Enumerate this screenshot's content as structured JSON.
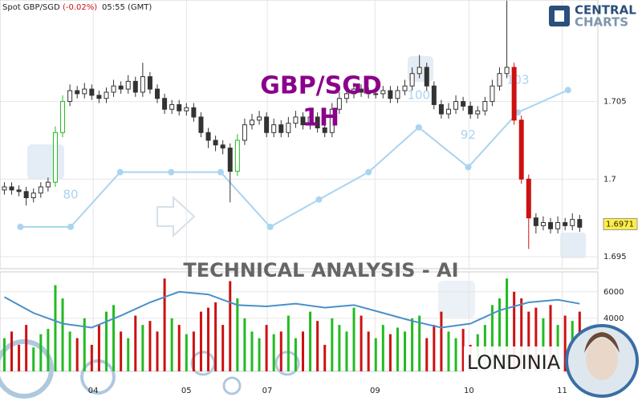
{
  "chart_data": {
    "type": "candlestick",
    "header": {
      "symbol": "Spot GBP/SGD",
      "change": "(-0.02%)",
      "time": "05:55 (GMT)"
    },
    "watermark": {
      "pair": "GBP/SGD",
      "timeframe": "1H",
      "banner": "TECHNICAL  ANALYSIS - AI",
      "brand": "LONDINIA",
      "logo_top": "CENTRAL",
      "logo_bottom": "CHARTS"
    },
    "xlim": [
      -0.6,
      81.5
    ],
    "xticks": [
      {
        "value": 12.2,
        "label": "04"
      },
      {
        "value": 25.0,
        "label": "05"
      },
      {
        "value": 36.1,
        "label": "07"
      },
      {
        "value": 50.9,
        "label": "09"
      },
      {
        "value": 63.8,
        "label": "10"
      },
      {
        "value": 76.6,
        "label": "11"
      }
    ],
    "ylim": [
      1.69423,
      1.71154
    ],
    "yticks": [
      {
        "value": 1.705,
        "label": "1.705"
      },
      {
        "value": 1.7,
        "label": "1.7"
      },
      {
        "value": 1.695,
        "label": "1.695"
      }
    ],
    "last_price": {
      "value": 1.6971,
      "label": "1.6971",
      "color": "#ffee44"
    },
    "up_color": "#22bb22",
    "down_color": "#cc1111",
    "candle_color": "#333333",
    "candles": [
      [
        1.6993,
        1.6998,
        1.699,
        1.6995
      ],
      [
        1.6995,
        1.6998,
        1.699,
        1.6993
      ],
      [
        1.6993,
        1.6996,
        1.6989,
        1.6992
      ],
      [
        1.6992,
        1.6995,
        1.6983,
        1.6988
      ],
      [
        1.6988,
        1.6994,
        1.6985,
        1.6991
      ],
      [
        1.6991,
        1.6998,
        1.6988,
        1.6995
      ],
      [
        1.6995,
        1.7001,
        1.6992,
        1.6998
      ],
      [
        1.6998,
        1.7034,
        1.6995,
        1.703
      ],
      [
        1.703,
        1.7054,
        1.7027,
        1.705
      ],
      [
        1.705,
        1.7061,
        1.7047,
        1.7057
      ],
      [
        1.7057,
        1.706,
        1.7052,
        1.7055
      ],
      [
        1.7055,
        1.7062,
        1.7052,
        1.7058
      ],
      [
        1.7058,
        1.7061,
        1.7051,
        1.7054
      ],
      [
        1.7054,
        1.7057,
        1.7049,
        1.7052
      ],
      [
        1.7052,
        1.7059,
        1.7049,
        1.7056
      ],
      [
        1.7056,
        1.7064,
        1.7053,
        1.706
      ],
      [
        1.706,
        1.7063,
        1.7055,
        1.7058
      ],
      [
        1.7058,
        1.7067,
        1.7055,
        1.7063
      ],
      [
        1.7063,
        1.7066,
        1.7053,
        1.7056
      ],
      [
        1.7056,
        1.7075,
        1.7053,
        1.7066
      ],
      [
        1.7066,
        1.7069,
        1.7055,
        1.7058
      ],
      [
        1.7058,
        1.7061,
        1.7049,
        1.7052
      ],
      [
        1.7052,
        1.7055,
        1.7042,
        1.7045
      ],
      [
        1.7045,
        1.7051,
        1.7042,
        1.7048
      ],
      [
        1.7048,
        1.7051,
        1.7041,
        1.7044
      ],
      [
        1.7044,
        1.7049,
        1.7041,
        1.7046
      ],
      [
        1.7046,
        1.7049,
        1.7037,
        1.704
      ],
      [
        1.704,
        1.7043,
        1.7027,
        1.703
      ],
      [
        1.703,
        1.7033,
        1.702,
        1.7025
      ],
      [
        1.7025,
        1.7028,
        1.7018,
        1.7022
      ],
      [
        1.7022,
        1.7025,
        1.7016,
        1.702
      ],
      [
        1.702,
        1.7023,
        1.6985,
        1.7005
      ],
      [
        1.7005,
        1.7029,
        1.7002,
        1.7025
      ],
      [
        1.7025,
        1.7039,
        1.7022,
        1.7035
      ],
      [
        1.7035,
        1.7042,
        1.7032,
        1.7038
      ],
      [
        1.7038,
        1.7044,
        1.7035,
        1.704
      ],
      [
        1.704,
        1.7043,
        1.7027,
        1.703
      ],
      [
        1.703,
        1.7039,
        1.7027,
        1.7035
      ],
      [
        1.7035,
        1.7038,
        1.7027,
        1.703
      ],
      [
        1.703,
        1.704,
        1.7027,
        1.7036
      ],
      [
        1.7036,
        1.7044,
        1.7033,
        1.704
      ],
      [
        1.704,
        1.7043,
        1.7032,
        1.7035
      ],
      [
        1.7035,
        1.7044,
        1.7032,
        1.704
      ],
      [
        1.704,
        1.7043,
        1.703,
        1.7033
      ],
      [
        1.7033,
        1.7036,
        1.7027,
        1.703
      ],
      [
        1.703,
        1.7049,
        1.7027,
        1.7045
      ],
      [
        1.7045,
        1.7056,
        1.7042,
        1.7052
      ],
      [
        1.7052,
        1.7059,
        1.7049,
        1.7055
      ],
      [
        1.7055,
        1.7062,
        1.7052,
        1.7058
      ],
      [
        1.7058,
        1.7061,
        1.7053,
        1.7056
      ],
      [
        1.7056,
        1.7059,
        1.7052,
        1.7055
      ],
      [
        1.7055,
        1.7058,
        1.7052,
        1.7055
      ],
      [
        1.7055,
        1.706,
        1.7052,
        1.7057
      ],
      [
        1.7057,
        1.706,
        1.7049,
        1.7052
      ],
      [
        1.7052,
        1.706,
        1.7049,
        1.7057
      ],
      [
        1.7057,
        1.7064,
        1.7054,
        1.706
      ],
      [
        1.706,
        1.7072,
        1.7057,
        1.7068
      ],
      [
        1.7068,
        1.708,
        1.7065,
        1.7072
      ],
      [
        1.7072,
        1.7075,
        1.7057,
        1.706
      ],
      [
        1.706,
        1.7063,
        1.7045,
        1.7048
      ],
      [
        1.7048,
        1.7051,
        1.7039,
        1.7042
      ],
      [
        1.7042,
        1.7049,
        1.7039,
        1.7045
      ],
      [
        1.7045,
        1.7054,
        1.7042,
        1.705
      ],
      [
        1.705,
        1.7053,
        1.7044,
        1.7047
      ],
      [
        1.7047,
        1.705,
        1.7039,
        1.7042
      ],
      [
        1.7042,
        1.7047,
        1.7039,
        1.7044
      ],
      [
        1.7044,
        1.7053,
        1.7041,
        1.705
      ],
      [
        1.705,
        1.7064,
        1.7047,
        1.706
      ],
      [
        1.706,
        1.7072,
        1.7057,
        1.7068
      ],
      [
        1.7068,
        1.7115,
        1.7065,
        1.7072
      ],
      [
        1.7072,
        1.7075,
        1.7035,
        1.7038
      ],
      [
        1.7038,
        1.7041,
        1.6997,
        1.7
      ],
      [
        1.7,
        1.7003,
        1.6955,
        1.6975
      ],
      [
        1.6975,
        1.6978,
        1.6965,
        1.697
      ],
      [
        1.697,
        1.6976,
        1.6967,
        1.6972
      ],
      [
        1.6972,
        1.6975,
        1.6965,
        1.6968
      ],
      [
        1.6968,
        1.6976,
        1.6965,
        1.6972
      ],
      [
        1.6972,
        1.6975,
        1.6967,
        1.697
      ],
      [
        1.697,
        1.6978,
        1.6967,
        1.6974
      ],
      [
        1.6974,
        1.6977,
        1.6966,
        1.6969
      ]
    ],
    "ranking": {
      "color": "#aad4f0",
      "ylim": [
        71.6,
        125.6
      ],
      "x": [
        2.2,
        9.1,
        15.9,
        22.9,
        29.7,
        36.5,
        43.2,
        50.0,
        56.9,
        63.7,
        70.5,
        77.4
      ],
      "values": [
        80,
        80,
        91,
        91,
        91,
        80,
        85.5,
        91,
        100,
        92,
        103,
        107.5
      ],
      "value_labels": [
        null,
        "80",
        null,
        null,
        null,
        null,
        null,
        null,
        "100",
        "92",
        "103",
        null
      ]
    },
    "volume": {
      "ylim": [
        0,
        7500
      ],
      "yticks": [
        4000,
        6000
      ],
      "values": [
        2500,
        3000,
        2000,
        3500,
        1800,
        2800,
        3200,
        6500,
        5500,
        3000,
        2500,
        4000,
        2000,
        3500,
        4500,
        5000,
        3000,
        2500,
        4200,
        3500,
        3800,
        3000,
        7000,
        4000,
        3500,
        2800,
        3000,
        4500,
        4800,
        5200,
        3500,
        6800,
        5500,
        4000,
        3000,
        2500,
        3500,
        2800,
        3000,
        4200,
        2500,
        3000,
        4500,
        3800,
        2000,
        4000,
        3500,
        3000,
        4800,
        4200,
        3000,
        2500,
        3500,
        2800,
        3300,
        3000,
        4000,
        4200,
        2500,
        3500,
        4500,
        3000,
        2500,
        3200,
        2000,
        2800,
        3500,
        5000,
        5500,
        7000,
        6000,
        5500,
        4500,
        4800,
        4000,
        5000,
        3500,
        4200,
        3800,
        4500
      ],
      "average": {
        "color": "#4a90c8",
        "x": [
          0,
          4,
          8,
          12,
          16,
          20,
          24,
          28,
          32,
          36,
          40,
          44,
          48,
          52,
          56,
          60,
          64,
          68,
          72,
          76,
          79
        ],
        "values": [
          5600,
          4400,
          3600,
          3300,
          4200,
          5200,
          6000,
          5800,
          5000,
          4900,
          5100,
          4800,
          5000,
          4400,
          3800,
          3300,
          3600,
          4600,
          5200,
          5400,
          5100
        ]
      }
    }
  }
}
